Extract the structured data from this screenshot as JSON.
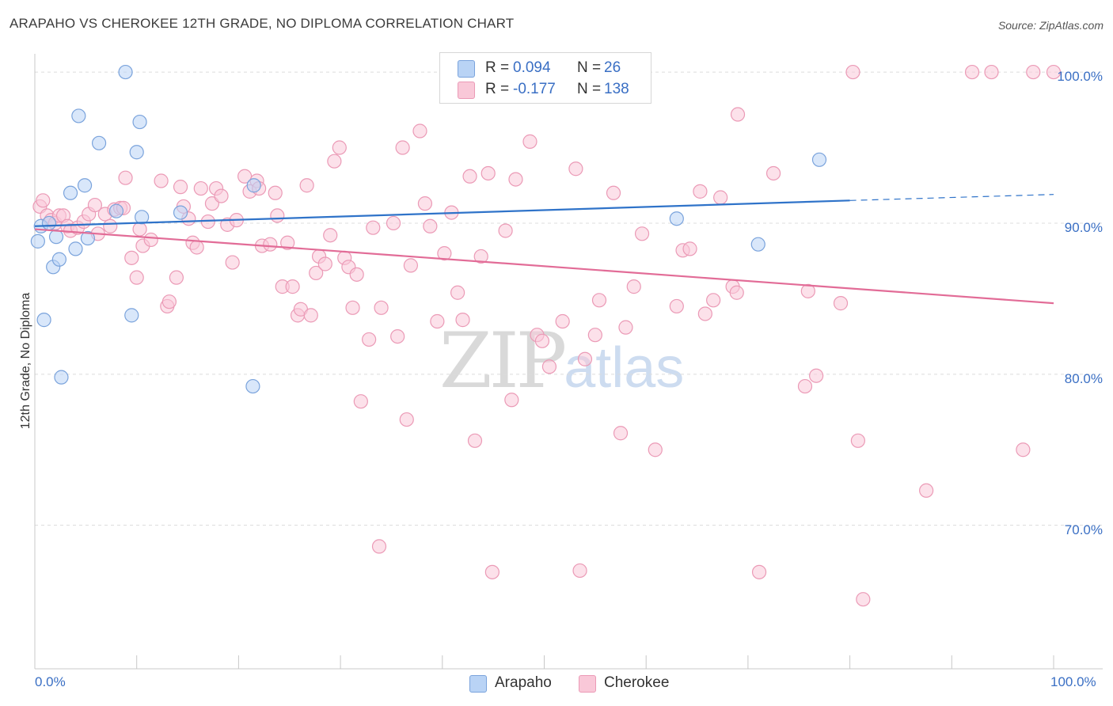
{
  "title": "ARAPAHO VS CHEROKEE 12TH GRADE, NO DIPLOMA CORRELATION CHART",
  "source": "Source: ZipAtlas.com",
  "watermark": {
    "zip": "ZIP",
    "atlas": "atlas"
  },
  "legend": {
    "arapaho": {
      "r_label": "R = ",
      "r_value": "0.094",
      "n_label": "N = ",
      "n_value": "26"
    },
    "cherokee": {
      "r_label": "R = ",
      "r_value": "-0.177",
      "n_label": "N = ",
      "n_value": "138"
    }
  },
  "colors": {
    "arapaho_fill": "#b9d3f5",
    "arapaho_stroke": "#7aa3dc",
    "arapaho_line": "#2f73c9",
    "cherokee_fill": "#f9c8d8",
    "cherokee_stroke": "#eb9ab6",
    "cherokee_line": "#e26c97",
    "axis_label": "#3a6fc4",
    "grid": "#dcdcdc"
  },
  "chart_data": {
    "type": "scatter",
    "title": "ARAPAHO VS CHEROKEE 12TH GRADE, NO DIPLOMA CORRELATION CHART",
    "xlabel": "",
    "ylabel": "12th Grade, No Diploma",
    "x_tick_labels": [
      "0.0%",
      "100.0%"
    ],
    "y_tick_labels": [
      "100.0%",
      "90.0%",
      "80.0%",
      "70.0%"
    ],
    "xlim": [
      0,
      100
    ],
    "ylim": [
      60.5,
      101
    ],
    "grid": true,
    "legend_position": "top-center",
    "series": [
      {
        "name": "Arapaho",
        "points": [
          [
            0.3,
            88.8
          ],
          [
            0.6,
            89.8
          ],
          [
            0.9,
            83.6
          ],
          [
            1.4,
            90.0
          ],
          [
            1.8,
            87.1
          ],
          [
            2.1,
            89.1
          ],
          [
            2.4,
            87.6
          ],
          [
            2.6,
            79.8
          ],
          [
            3.5,
            92.0
          ],
          [
            4.0,
            88.3
          ],
          [
            4.3,
            97.1
          ],
          [
            4.9,
            92.5
          ],
          [
            5.2,
            89.0
          ],
          [
            6.3,
            95.3
          ],
          [
            8.0,
            90.8
          ],
          [
            8.9,
            100.0
          ],
          [
            9.5,
            83.9
          ],
          [
            10.0,
            94.7
          ],
          [
            10.3,
            96.7
          ],
          [
            10.5,
            90.4
          ],
          [
            14.3,
            90.7
          ],
          [
            21.4,
            79.2
          ],
          [
            21.5,
            92.5
          ],
          [
            63.0,
            90.3
          ],
          [
            71.0,
            88.6
          ],
          [
            77.0,
            94.2
          ]
        ],
        "trend": {
          "x": [
            0,
            80
          ],
          "y": [
            89.8,
            91.5
          ],
          "dashed_to": [
            100,
            91.9
          ]
        }
      },
      {
        "name": "Cherokee",
        "points": [
          [
            0.5,
            91.1
          ],
          [
            0.8,
            91.5
          ],
          [
            1.2,
            90.5
          ],
          [
            1.6,
            90.2
          ],
          [
            2.0,
            90.0
          ],
          [
            2.4,
            90.5
          ],
          [
            2.8,
            90.5
          ],
          [
            3.2,
            89.8
          ],
          [
            3.5,
            89.5
          ],
          [
            4.2,
            89.7
          ],
          [
            4.8,
            90.1
          ],
          [
            5.3,
            90.6
          ],
          [
            5.9,
            91.2
          ],
          [
            6.2,
            89.3
          ],
          [
            6.9,
            90.6
          ],
          [
            7.4,
            89.8
          ],
          [
            7.8,
            90.9
          ],
          [
            8.4,
            91.0
          ],
          [
            8.7,
            91.0
          ],
          [
            8.9,
            93.0
          ],
          [
            9.5,
            87.7
          ],
          [
            10.0,
            86.4
          ],
          [
            10.3,
            89.6
          ],
          [
            10.6,
            88.5
          ],
          [
            11.4,
            88.9
          ],
          [
            12.4,
            92.8
          ],
          [
            13.0,
            84.5
          ],
          [
            13.2,
            84.8
          ],
          [
            13.9,
            86.4
          ],
          [
            14.3,
            92.4
          ],
          [
            14.6,
            91.1
          ],
          [
            15.1,
            90.3
          ],
          [
            15.5,
            88.7
          ],
          [
            15.9,
            88.4
          ],
          [
            16.3,
            92.3
          ],
          [
            17.0,
            90.1
          ],
          [
            17.4,
            91.3
          ],
          [
            17.8,
            92.3
          ],
          [
            18.3,
            91.8
          ],
          [
            18.9,
            89.9
          ],
          [
            19.4,
            87.4
          ],
          [
            19.8,
            90.2
          ],
          [
            20.6,
            93.1
          ],
          [
            21.1,
            92.1
          ],
          [
            21.8,
            92.8
          ],
          [
            22.0,
            92.3
          ],
          [
            22.3,
            88.5
          ],
          [
            23.1,
            88.6
          ],
          [
            23.6,
            92.0
          ],
          [
            23.8,
            90.5
          ],
          [
            24.3,
            85.8
          ],
          [
            24.8,
            88.7
          ],
          [
            25.3,
            85.8
          ],
          [
            25.8,
            83.9
          ],
          [
            26.1,
            84.3
          ],
          [
            26.7,
            92.5
          ],
          [
            27.1,
            83.9
          ],
          [
            27.6,
            86.7
          ],
          [
            27.9,
            87.8
          ],
          [
            28.5,
            87.3
          ],
          [
            29.0,
            89.2
          ],
          [
            29.4,
            94.1
          ],
          [
            29.9,
            95.0
          ],
          [
            30.4,
            87.7
          ],
          [
            30.8,
            87.1
          ],
          [
            31.2,
            84.4
          ],
          [
            31.6,
            86.6
          ],
          [
            32.0,
            78.2
          ],
          [
            32.8,
            82.3
          ],
          [
            33.2,
            89.7
          ],
          [
            33.8,
            68.6
          ],
          [
            34.0,
            84.4
          ],
          [
            35.2,
            90.0
          ],
          [
            35.6,
            82.5
          ],
          [
            36.1,
            95.0
          ],
          [
            36.5,
            77.0
          ],
          [
            36.9,
            87.2
          ],
          [
            37.8,
            96.1
          ],
          [
            38.3,
            91.3
          ],
          [
            38.8,
            89.8
          ],
          [
            39.5,
            83.5
          ],
          [
            40.2,
            88.0
          ],
          [
            40.9,
            90.7
          ],
          [
            41.5,
            85.4
          ],
          [
            42.0,
            83.6
          ],
          [
            42.7,
            93.1
          ],
          [
            43.2,
            75.6
          ],
          [
            43.8,
            87.8
          ],
          [
            44.5,
            93.3
          ],
          [
            44.9,
            66.9
          ],
          [
            46.2,
            89.5
          ],
          [
            46.8,
            78.3
          ],
          [
            47.2,
            92.9
          ],
          [
            48.0,
            100.0
          ],
          [
            48.6,
            95.4
          ],
          [
            49.3,
            82.6
          ],
          [
            49.8,
            82.2
          ],
          [
            50.5,
            80.5
          ],
          [
            51.5,
            99.2
          ],
          [
            52.0,
            100.1
          ],
          [
            51.8,
            83.5
          ],
          [
            53.1,
            93.6
          ],
          [
            53.5,
            67.0
          ],
          [
            54.0,
            81.0
          ],
          [
            55.0,
            82.6
          ],
          [
            55.4,
            84.9
          ],
          [
            56.8,
            92.0
          ],
          [
            57.5,
            76.1
          ],
          [
            58.0,
            83.1
          ],
          [
            58.8,
            85.8
          ],
          [
            59.6,
            89.3
          ],
          [
            60.9,
            75.0
          ],
          [
            63.0,
            84.5
          ],
          [
            63.6,
            88.2
          ],
          [
            64.3,
            88.3
          ],
          [
            65.3,
            92.1
          ],
          [
            65.8,
            84.0
          ],
          [
            66.6,
            84.9
          ],
          [
            67.3,
            91.7
          ],
          [
            68.5,
            85.8
          ],
          [
            68.9,
            85.4
          ],
          [
            69.0,
            97.2
          ],
          [
            71.1,
            66.9
          ],
          [
            72.5,
            93.3
          ],
          [
            75.6,
            79.2
          ],
          [
            75.9,
            85.5
          ],
          [
            76.7,
            79.9
          ],
          [
            79.1,
            84.7
          ],
          [
            80.3,
            100.0
          ],
          [
            80.8,
            75.6
          ],
          [
            81.3,
            65.1
          ],
          [
            87.5,
            72.3
          ],
          [
            92.0,
            100.0
          ],
          [
            93.9,
            100.0
          ],
          [
            97.0,
            75.0
          ],
          [
            98.0,
            100.0
          ],
          [
            100.0,
            100.0
          ]
        ],
        "trend": {
          "x": [
            0,
            100
          ],
          "y": [
            89.6,
            84.7
          ]
        }
      }
    ]
  }
}
